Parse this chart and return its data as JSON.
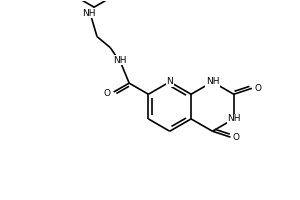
{
  "bg_color": "#ffffff",
  "line_color": "#000000",
  "line_width": 1.2,
  "font_size": 6.5,
  "fig_width": 3.0,
  "fig_height": 2.0,
  "dpi": 100,
  "xlim": [
    0,
    9
  ],
  "ylim": [
    0,
    6
  ]
}
